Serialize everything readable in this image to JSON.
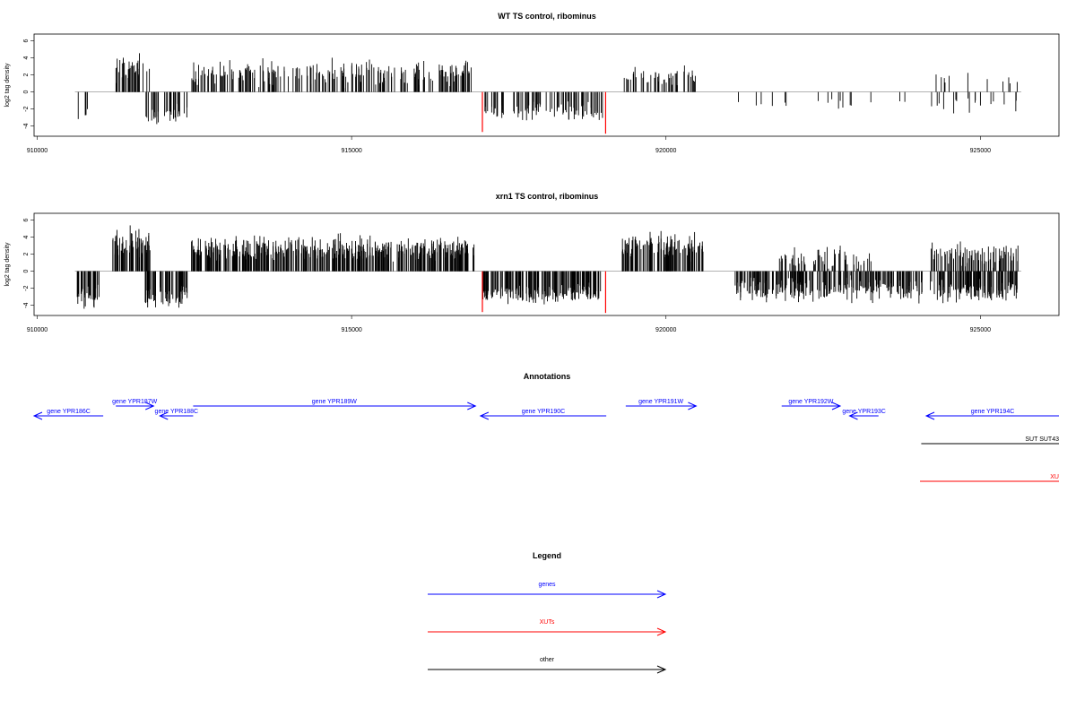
{
  "chart_data": [
    {
      "type": "bar",
      "title": "WT TS control, ribominus",
      "ylabel": "log2 tag density",
      "xlim": [
        909950,
        926250
      ],
      "ylim": [
        -5.2,
        6.8
      ],
      "xticks": [
        910000,
        915000,
        920000,
        925000
      ],
      "yticks": [
        -4,
        -2,
        0,
        2,
        4,
        6
      ],
      "segments": [
        {
          "start": 910600,
          "end": 910850,
          "sign": -1,
          "mean": 2.4,
          "spread": 0.6,
          "density": 0.02,
          "color": "#000000"
        },
        {
          "start": 911200,
          "end": 911800,
          "sign": 1,
          "mean": 2.8,
          "spread": 1.2,
          "density": 0.06,
          "color": "#000000"
        },
        {
          "start": 911700,
          "end": 912400,
          "sign": -1,
          "mean": 2.6,
          "spread": 0.9,
          "density": 0.05,
          "color": "#000000"
        },
        {
          "start": 912450,
          "end": 916950,
          "sign": 1,
          "mean": 2.3,
          "spread": 1.1,
          "density": 0.05,
          "color": "#000000"
        },
        {
          "start": 917050,
          "end": 919000,
          "sign": -1,
          "mean": 2.3,
          "spread": 0.8,
          "density": 0.05,
          "color": "#000000"
        },
        {
          "start": 919300,
          "end": 920500,
          "sign": 1,
          "mean": 1.9,
          "spread": 0.8,
          "density": 0.04,
          "color": "#000000"
        },
        {
          "start": 921100,
          "end": 924000,
          "sign": -1,
          "mean": 1.2,
          "spread": 0.5,
          "density": 0.006,
          "color": "#000000"
        },
        {
          "start": 924200,
          "end": 925600,
          "sign": -1,
          "mean": 1.5,
          "spread": 0.7,
          "density": 0.012,
          "color": "#000000"
        },
        {
          "start": 924200,
          "end": 925600,
          "sign": 1,
          "mean": 1.6,
          "spread": 0.7,
          "density": 0.008,
          "color": "#000000"
        }
      ],
      "highlights": [
        {
          "x": 917080,
          "y": -4.7,
          "color": "#ff0000"
        },
        {
          "x": 919040,
          "y": -4.9,
          "color": "#ff0000"
        }
      ]
    },
    {
      "type": "bar",
      "title": "xrn1 TS control, ribominus",
      "ylabel": "log2 tag density",
      "xlim": [
        909950,
        926250
      ],
      "ylim": [
        -5.2,
        6.8
      ],
      "xticks": [
        910000,
        915000,
        920000,
        925000
      ],
      "yticks": [
        -4,
        -2,
        0,
        2,
        4,
        6
      ],
      "segments": [
        {
          "start": 910600,
          "end": 911000,
          "sign": -1,
          "mean": 3.0,
          "spread": 1.0,
          "density": 0.09,
          "color": "#000000"
        },
        {
          "start": 911200,
          "end": 911800,
          "sign": 1,
          "mean": 3.2,
          "spread": 1.3,
          "density": 0.1,
          "color": "#000000"
        },
        {
          "start": 911700,
          "end": 912400,
          "sign": -1,
          "mean": 2.8,
          "spread": 1.0,
          "density": 0.09,
          "color": "#000000"
        },
        {
          "start": 912450,
          "end": 916950,
          "sign": 1,
          "mean": 2.6,
          "spread": 1.1,
          "density": 0.1,
          "color": "#000000"
        },
        {
          "start": 917050,
          "end": 919000,
          "sign": -1,
          "mean": 2.6,
          "spread": 0.9,
          "density": 0.1,
          "color": "#000000"
        },
        {
          "start": 919300,
          "end": 920600,
          "sign": 1,
          "mean": 3.0,
          "spread": 1.1,
          "density": 0.1,
          "color": "#000000"
        },
        {
          "start": 921100,
          "end": 924100,
          "sign": -1,
          "mean": 2.2,
          "spread": 1.0,
          "density": 0.08,
          "color": "#000000"
        },
        {
          "start": 921800,
          "end": 923300,
          "sign": 1,
          "mean": 1.6,
          "spread": 1.0,
          "density": 0.04,
          "color": "#000000"
        },
        {
          "start": 924200,
          "end": 925600,
          "sign": -1,
          "mean": 2.4,
          "spread": 1.0,
          "density": 0.09,
          "color": "#000000"
        },
        {
          "start": 924200,
          "end": 925600,
          "sign": 1,
          "mean": 1.8,
          "spread": 1.0,
          "density": 0.06,
          "color": "#000000"
        }
      ],
      "highlights": [
        {
          "x": 917080,
          "y": -4.8,
          "color": "#ff0000"
        },
        {
          "x": 919040,
          "y": -4.9,
          "color": "#ff0000"
        }
      ]
    }
  ],
  "annotations": {
    "title": "Annotations",
    "features": [
      {
        "label": "gene YPR186C",
        "start": 909950,
        "end": 911050,
        "strand": "-",
        "type": "gene",
        "row": 1
      },
      {
        "label": "gene YPR187W",
        "start": 911250,
        "end": 911850,
        "strand": "+",
        "type": "gene",
        "row": 0
      },
      {
        "label": "gene YPR188C",
        "start": 911950,
        "end": 912480,
        "strand": "-",
        "type": "gene",
        "row": 1
      },
      {
        "label": "gene YPR189W",
        "start": 912480,
        "end": 916970,
        "strand": "+",
        "type": "gene",
        "row": 0
      },
      {
        "label": "gene YPR190C",
        "start": 917050,
        "end": 919050,
        "strand": "-",
        "type": "gene",
        "row": 1
      },
      {
        "label": "gene YPR191W",
        "start": 919360,
        "end": 920480,
        "strand": "+",
        "type": "gene",
        "row": 0
      },
      {
        "label": "gene YPR192W",
        "start": 921840,
        "end": 922770,
        "strand": "+",
        "type": "gene",
        "row": 0
      },
      {
        "label": "gene YPR193C",
        "start": 922920,
        "end": 923380,
        "strand": "-",
        "type": "gene",
        "row": 1
      },
      {
        "label": "gene YPR194C",
        "start": 924140,
        "end": 926250,
        "strand": "-",
        "type": "gene",
        "row": 1
      },
      {
        "label": "SUT SUT43",
        "start": 924060,
        "end": 926250,
        "strand": "",
        "type": "other",
        "row": 2
      },
      {
        "label": "XU",
        "start": 924040,
        "end": 926250,
        "strand": "",
        "type": "xut",
        "row": 3
      }
    ]
  },
  "legend": {
    "title": "Legend",
    "items": [
      {
        "label": "genes",
        "type": "gene"
      },
      {
        "label": "XUTs",
        "type": "xut"
      },
      {
        "label": "other",
        "type": "other"
      }
    ]
  },
  "colors": {
    "gene": "#0000ff",
    "xut": "#ff0000",
    "other": "#000000",
    "baseline": "#999999"
  }
}
